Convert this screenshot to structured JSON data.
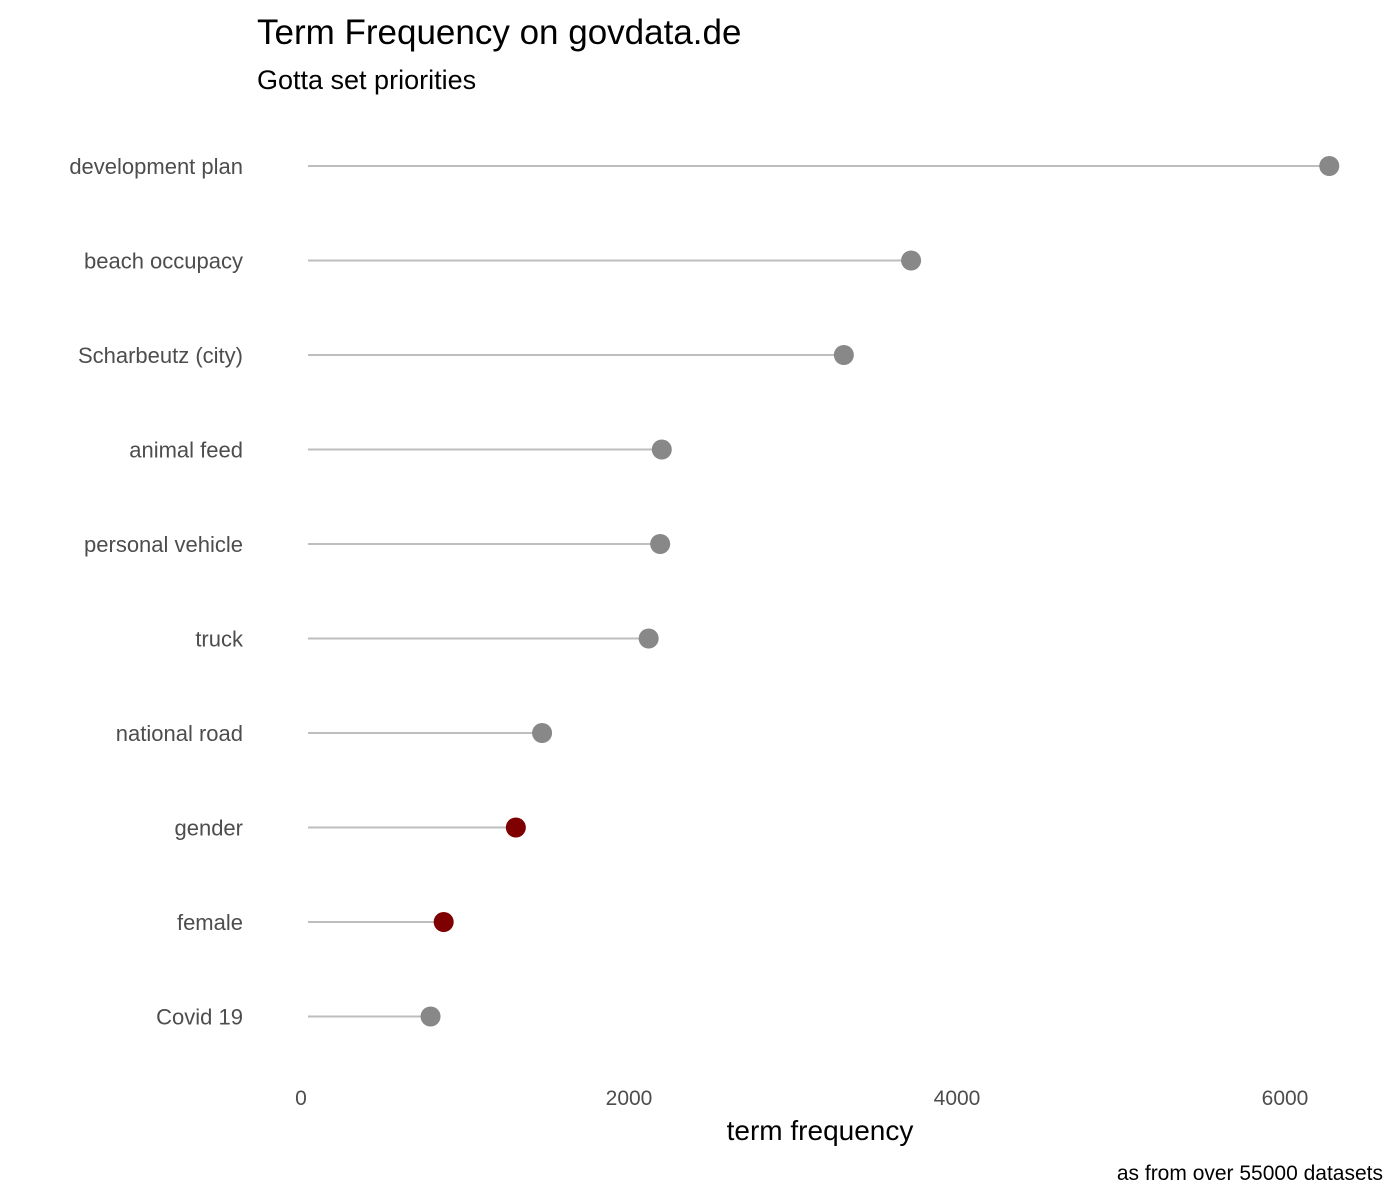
{
  "chart_data": {
    "type": "lollipop",
    "title": "Term Frequency on govdata.de",
    "subtitle": "Gotta set priorities",
    "xlabel": "term frequency",
    "ylabel": "",
    "caption": "as from over 55000 datasets",
    "xlim": [
      -150,
      6300
    ],
    "x_ticks": [
      0,
      2000,
      4000,
      6000
    ],
    "x_tick_labels": [
      "0",
      "2000",
      "4000",
      "6000"
    ],
    "grid": false,
    "legend": "none",
    "colors": {
      "default": "#888888",
      "highlight": "#7f0000",
      "stem": "#bebebe"
    },
    "categories": [
      "development plan",
      "beach occupacy",
      "Scharbeutz (city)",
      "animal feed",
      "personal vehicle",
      "truck",
      "national road",
      "gender",
      "female",
      "Covid 19"
    ],
    "values": [
      6270,
      3720,
      3310,
      2200,
      2190,
      2120,
      1470,
      1310,
      870,
      790
    ],
    "highlighted": [
      false,
      false,
      false,
      false,
      false,
      false,
      false,
      true,
      true,
      false
    ]
  }
}
